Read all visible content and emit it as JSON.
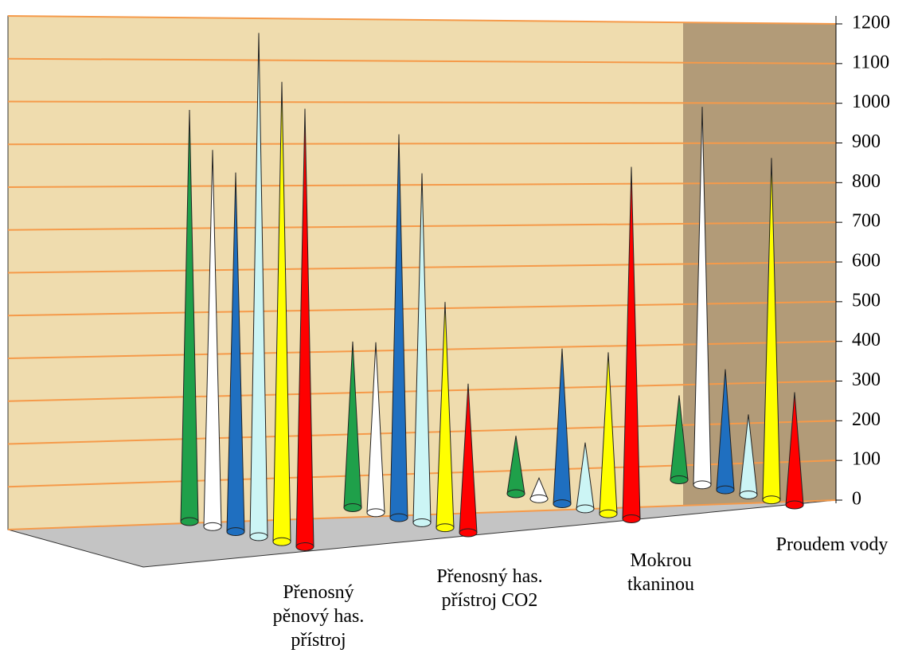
{
  "chart_data": {
    "type": "cone",
    "categories": [
      "Přenosný pěnový has. přístroj",
      "Přenosný has. přístroj CO2",
      "Mokrou tkaninou",
      "Proudem vody"
    ],
    "series": [
      {
        "color": "#1fa04a",
        "values": [
          940,
          390,
          140,
          210
        ]
      },
      {
        "color": "#ffffff",
        "values": [
          860,
          400,
          50,
          940
        ]
      },
      {
        "color": "#1f6fc0",
        "values": [
          820,
          900,
          375,
          300
        ]
      },
      {
        "color": "#ccf5f5",
        "values": [
          1150,
          820,
          160,
          200
        ]
      },
      {
        "color": "#ffff00",
        "values": [
          1050,
          530,
          390,
          850
        ]
      },
      {
        "color": "#ff0000",
        "values": [
          1000,
          350,
          850,
          280
        ]
      }
    ],
    "ylim": [
      0,
      1200
    ],
    "yticks": [
      0,
      100,
      200,
      300,
      400,
      500,
      600,
      700,
      800,
      900,
      1000,
      1100,
      1200
    ],
    "grid": true
  }
}
